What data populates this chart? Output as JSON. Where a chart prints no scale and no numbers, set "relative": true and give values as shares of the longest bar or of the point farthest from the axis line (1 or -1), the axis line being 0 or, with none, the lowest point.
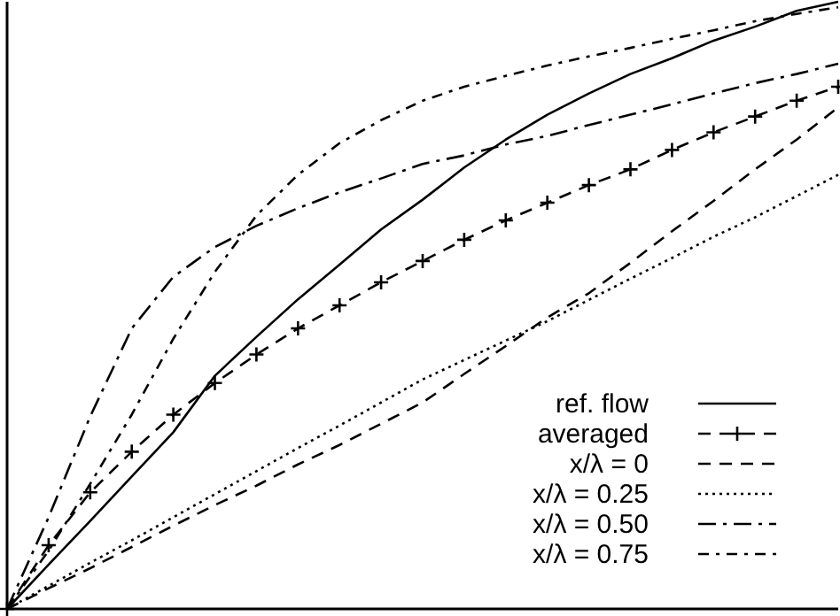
{
  "chart_data": {
    "type": "line",
    "relative": true,
    "legend": "bottom right",
    "categories": [
      null,
      null,
      null,
      null,
      null,
      null,
      null,
      null,
      null,
      null,
      null,
      null,
      null,
      null,
      null,
      null,
      null,
      null,
      null,
      null,
      null
    ],
    "series": [
      {
        "name": "ref. flow",
        "color": "#000000",
        "line_style": "solid",
        "marker": "none",
        "values": [
          0,
          0.073,
          0.145,
          0.218,
          0.291,
          0.384,
          0.448,
          0.51,
          0.567,
          0.625,
          0.674,
          0.727,
          0.773,
          0.814,
          0.849,
          0.881,
          0.907,
          0.936,
          0.959,
          0.985,
          1
        ]
      },
      {
        "name": "averaged",
        "color": "#000000",
        "line_style": "dashed",
        "marker": "cross",
        "values": [
          0,
          0.105,
          0.192,
          0.259,
          0.32,
          0.372,
          0.419,
          0.462,
          0.5,
          0.538,
          0.573,
          0.608,
          0.64,
          0.669,
          0.698,
          0.724,
          0.756,
          0.785,
          0.811,
          0.837,
          0.86
        ]
      },
      {
        "name": "x/λ = 0",
        "color": "#000000",
        "line_style": "dashed",
        "marker": "none",
        "values": [
          0,
          0.034,
          0.067,
          0.102,
          0.137,
          0.171,
          0.203,
          0.238,
          0.27,
          0.305,
          0.34,
          0.387,
          0.433,
          0.48,
          0.52,
          0.57,
          0.622,
          0.672,
          0.724,
          0.773,
          0.826
        ]
      },
      {
        "name": "x/λ = 0.25",
        "color": "#000000",
        "line_style": "dotted",
        "marker": "none",
        "values": [
          0,
          0.038,
          0.076,
          0.113,
          0.151,
          0.189,
          0.227,
          0.265,
          0.302,
          0.34,
          0.378,
          0.41,
          0.442,
          0.474,
          0.509,
          0.544,
          0.578,
          0.613,
          0.645,
          0.68,
          0.715
        ]
      },
      {
        "name": "x/λ = 0.50",
        "color": "#000000",
        "line_style": "dashdot",
        "marker": "none",
        "values": [
          0,
          0.151,
          0.317,
          0.462,
          0.547,
          0.596,
          0.631,
          0.66,
          0.686,
          0.709,
          0.733,
          0.747,
          0.765,
          0.779,
          0.797,
          0.814,
          0.831,
          0.849,
          0.866,
          0.881,
          0.898
        ]
      },
      {
        "name": "x/λ = 0.75",
        "color": "#000000",
        "line_style": "densely dashdot",
        "marker": "none",
        "values": [
          0,
          0.096,
          0.206,
          0.32,
          0.445,
          0.555,
          0.648,
          0.715,
          0.767,
          0.805,
          0.837,
          0.86,
          0.878,
          0.895,
          0.91,
          0.924,
          0.939,
          0.953,
          0.968,
          0.98,
          0.991
        ]
      }
    ]
  }
}
